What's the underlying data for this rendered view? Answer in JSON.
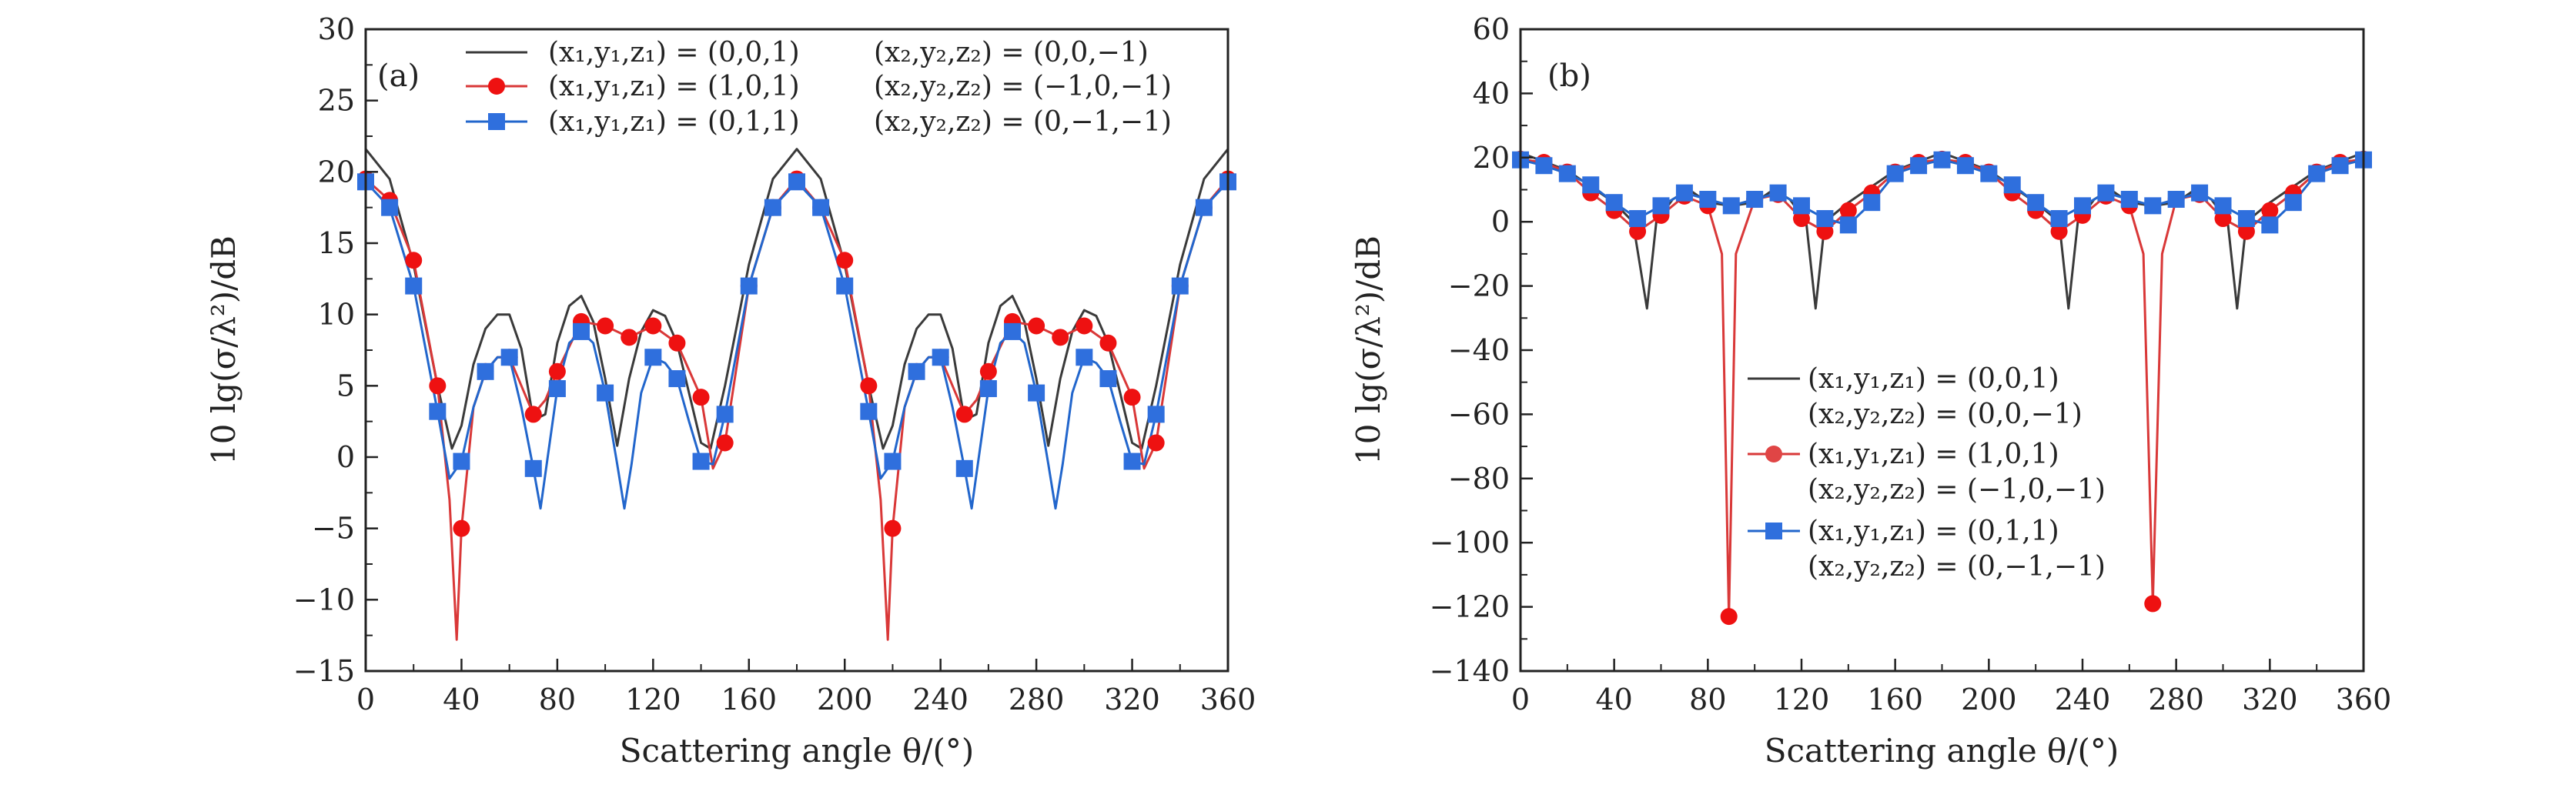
{
  "colors": {
    "series1": "#3a3a3a",
    "series2": "#d93838",
    "series3": "#2266cc",
    "marker2": "#ee1111",
    "marker3": "#2f6fdd"
  },
  "series_legend": {
    "s1": {
      "l1": "(x₁,y₁,z₁) = (0,0,1)",
      "l2": "(x₂,y₂,z₂) = (0,0,−1)"
    },
    "s2": {
      "l1": "(x₁,y₁,z₁) = (1,0,1)",
      "l2": "(x₂,y₂,z₂) = (−1,0,−1)"
    },
    "s3": {
      "l1": "(x₁,y₁,z₁) = (0,1,1)",
      "l2": "(x₂,y₂,z₂) = (0,−1,−1)"
    }
  },
  "chart_data": [
    {
      "type": "line",
      "panel_label": "(a)",
      "xlabel": "Scattering angle θ/(°)",
      "ylabel": "10 lg(σ/λ²)/dB",
      "xlim": [
        0,
        360
      ],
      "ylim": [
        -15,
        30
      ],
      "xticks": [
        "0",
        "40",
        "80",
        "120",
        "160",
        "200",
        "240",
        "280",
        "320",
        "360"
      ],
      "yticks": [
        "−15",
        "−10",
        "−5",
        "0",
        "5",
        "10",
        "15",
        "20",
        "25",
        "30"
      ],
      "legend_position": "top-right",
      "series": [
        {
          "marker": "none",
          "x": [
            0,
            10,
            20,
            30,
            36,
            40,
            45,
            50,
            55,
            60,
            65,
            70,
            75,
            80,
            85,
            90,
            95,
            100,
            105,
            110,
            115,
            120,
            125,
            130,
            135,
            140,
            144,
            150,
            160,
            170,
            180,
            190,
            200,
            210,
            216,
            220,
            225,
            230,
            235,
            240,
            245,
            250,
            255,
            260,
            265,
            270,
            275,
            280,
            285,
            290,
            295,
            300,
            305,
            310,
            315,
            320,
            324,
            330,
            340,
            350,
            360
          ],
          "values": [
            21.6,
            19.5,
            13.5,
            5,
            0.6,
            2.2,
            6.5,
            9,
            10,
            10,
            7.6,
            2.6,
            3,
            8,
            10.6,
            11.3,
            9.5,
            5.5,
            0.8,
            5.5,
            8.8,
            10.3,
            9.9,
            8,
            4.5,
            1,
            0.6,
            5,
            13.5,
            19.5,
            21.6,
            19.5,
            13.5,
            5,
            0.6,
            2.2,
            6.5,
            9,
            10,
            10,
            7.6,
            2.6,
            3,
            8,
            10.6,
            11.3,
            9.5,
            5.5,
            0.8,
            5.5,
            8.8,
            10.3,
            9.9,
            8,
            4.5,
            1,
            0.6,
            5,
            13.5,
            19.5,
            21.6
          ]
        },
        {
          "marker": "circle",
          "x": [
            0,
            10,
            20,
            30,
            35,
            38,
            40,
            45,
            50,
            55,
            60,
            65,
            70,
            75,
            80,
            90,
            100,
            110,
            120,
            130,
            140,
            145,
            150,
            160,
            170,
            180,
            190,
            200,
            210,
            215,
            218,
            220,
            225,
            230,
            235,
            240,
            245,
            250,
            255,
            260,
            270,
            280,
            290,
            300,
            310,
            320,
            325,
            330,
            340,
            350,
            360
          ],
          "values": [
            19.5,
            18,
            13.8,
            5,
            -3,
            -12.8,
            -5,
            3.5,
            6,
            7,
            7,
            5,
            3,
            4,
            6,
            9.5,
            9.2,
            8.4,
            9.2,
            8,
            4.2,
            -0.8,
            1,
            12,
            17.5,
            19.5,
            17.5,
            13.8,
            5,
            -3,
            -12.8,
            -5,
            3.5,
            6,
            7,
            7,
            5,
            3,
            4,
            6,
            9.5,
            9.2,
            8.4,
            9.2,
            8,
            4.2,
            -0.8,
            1,
            12,
            17.5,
            19.5
          ]
        },
        {
          "marker": "square",
          "x": [
            0,
            10,
            20,
            30,
            35,
            40,
            45,
            50,
            55,
            60,
            65,
            70,
            73,
            76,
            80,
            85,
            90,
            95,
            100,
            105,
            108,
            111,
            115,
            120,
            125,
            130,
            135,
            140,
            145,
            150,
            160,
            170,
            180,
            190,
            200,
            210,
            215,
            220,
            225,
            230,
            235,
            240,
            245,
            250,
            253,
            256,
            260,
            265,
            270,
            275,
            280,
            285,
            288,
            291,
            295,
            300,
            305,
            310,
            315,
            320,
            325,
            330,
            340,
            350,
            360
          ],
          "values": [
            19.3,
            17.5,
            12,
            3.2,
            -1.5,
            -0.3,
            3.5,
            6,
            7,
            7,
            3.5,
            -0.8,
            -3.6,
            0,
            4.8,
            8,
            8.8,
            8,
            4.5,
            -0.5,
            -3.6,
            -0.5,
            4.5,
            7,
            6.6,
            5.5,
            2.5,
            -0.3,
            -0.5,
            3,
            12,
            17.5,
            19.3,
            17.5,
            12,
            3.2,
            -1.5,
            -0.3,
            3.5,
            6,
            7,
            7,
            3.5,
            -0.8,
            -3.6,
            0,
            4.8,
            8,
            8.8,
            8,
            4.5,
            -0.5,
            -3.6,
            -0.5,
            4.5,
            7,
            6.6,
            5.5,
            2.5,
            -0.3,
            -0.5,
            3,
            12,
            17.5,
            19.3
          ]
        }
      ]
    },
    {
      "type": "line",
      "panel_label": "(b)",
      "xlabel": "Scattering angle θ/(°)",
      "ylabel": "10 lg(σ/λ²)/dB",
      "xlim": [
        0,
        360
      ],
      "ylim": [
        -140,
        60
      ],
      "xticks": [
        "0",
        "40",
        "80",
        "120",
        "160",
        "200",
        "240",
        "280",
        "320",
        "360"
      ],
      "yticks": [
        "−140",
        "−120",
        "−100",
        "−80",
        "−60",
        "−40",
        "−20",
        "0",
        "20",
        "40",
        "60"
      ],
      "legend_position": "lower-middle",
      "series": [
        {
          "marker": "none",
          "x": [
            0,
            20,
            40,
            48,
            54,
            58,
            65,
            72,
            80,
            90,
            100,
            108,
            115,
            122,
            126,
            130,
            140,
            160,
            180,
            200,
            220,
            230,
            234,
            238,
            245,
            252,
            260,
            270,
            280,
            288,
            295,
            302,
            306,
            310,
            320,
            340,
            360
          ],
          "values": [
            21.5,
            16,
            6,
            0,
            -27,
            0,
            7,
            10,
            6,
            5,
            6,
            10,
            7,
            0,
            -27,
            0,
            6,
            16,
            21.5,
            16,
            6,
            0,
            -27,
            0,
            7,
            10,
            6,
            5,
            6,
            10,
            7,
            0,
            -27,
            0,
            6,
            16,
            21.5
          ]
        },
        {
          "marker": "circle",
          "x": [
            0,
            10,
            20,
            30,
            40,
            50,
            60,
            70,
            80,
            86,
            89,
            92,
            100,
            110,
            120,
            130,
            140,
            150,
            160,
            170,
            180,
            190,
            200,
            210,
            220,
            230,
            240,
            250,
            260,
            266,
            270,
            274,
            280,
            290,
            300,
            310,
            320,
            330,
            340,
            350,
            360
          ],
          "values": [
            19.5,
            18.5,
            15.5,
            9,
            3.5,
            -3,
            2,
            8,
            5,
            -10,
            -123,
            -10,
            7,
            8.5,
            1,
            -3,
            3.5,
            9,
            15.5,
            18.5,
            19.5,
            18.5,
            15.5,
            9,
            3.5,
            -3,
            2,
            8,
            5,
            -10,
            -119,
            -10,
            7,
            8.5,
            1,
            -3,
            3.5,
            9,
            15.5,
            18.5,
            19.5
          ]
        },
        {
          "marker": "square",
          "x": [
            0,
            10,
            20,
            30,
            40,
            50,
            60,
            70,
            80,
            90,
            100,
            110,
            120,
            130,
            140,
            150,
            160,
            170,
            180,
            190,
            200,
            210,
            220,
            230,
            240,
            250,
            260,
            270,
            280,
            290,
            300,
            310,
            320,
            330,
            340,
            350,
            360
          ],
          "values": [
            19.3,
            17.5,
            15,
            11.5,
            6,
            1,
            5,
            9,
            7,
            5,
            7,
            9,
            5,
            1,
            -1,
            6,
            15,
            17.5,
            19.3,
            17.5,
            15,
            11.5,
            6,
            1,
            5,
            9,
            7,
            5,
            7,
            9,
            5,
            1,
            -1,
            6,
            15,
            17.5,
            19.3
          ]
        }
      ]
    }
  ]
}
